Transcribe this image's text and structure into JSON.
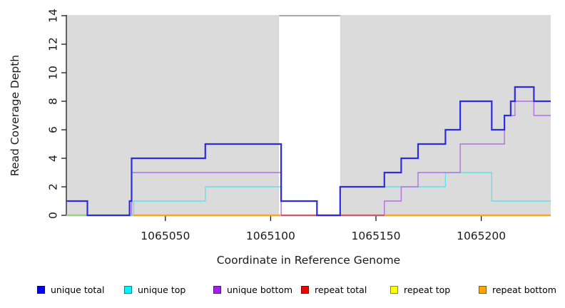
{
  "chart_data": {
    "type": "line",
    "subtype": "step-coverage-plot",
    "title": "",
    "xlabel": "Coordinate in Reference Genome",
    "ylabel": "Read Coverage Depth",
    "xlim": [
      1065003,
      1065233
    ],
    "ylim": [
      0,
      14
    ],
    "x_ticks": [
      1065050,
      1065100,
      1065150,
      1065200
    ],
    "y_ticks": [
      0,
      2,
      4,
      6,
      8,
      10,
      12,
      14
    ],
    "grid": false,
    "plot_background_color": "#DBDBDB",
    "axis_color": "#1A1A1A",
    "shaded_regions": [
      {
        "from": 1065003,
        "to": 1065104
      },
      {
        "from": 1065133,
        "to": 1065233
      }
    ],
    "gap_region": {
      "from": 1065104,
      "to": 1065133,
      "top_edge_color": "#A9A9A9"
    },
    "series": [
      {
        "name": "unique total",
        "color": "#2C2CE0",
        "steps": [
          [
            1065003,
            1
          ],
          [
            1065013,
            0
          ],
          [
            1065033,
            1
          ],
          [
            1065034,
            4
          ],
          [
            1065069,
            5
          ],
          [
            1065105,
            1
          ],
          [
            1065122,
            0
          ],
          [
            1065133,
            2
          ],
          [
            1065154,
            3
          ],
          [
            1065162,
            4
          ],
          [
            1065170,
            5
          ],
          [
            1065183,
            6
          ],
          [
            1065190,
            8
          ],
          [
            1065205,
            6
          ],
          [
            1065211,
            7
          ],
          [
            1065214,
            8
          ],
          [
            1065216,
            9
          ],
          [
            1065225,
            8
          ]
        ],
        "end": 1065233
      },
      {
        "name": "unique top",
        "color": "#5FE2E9",
        "steps": [
          [
            1065003,
            0
          ],
          [
            1065035,
            1
          ],
          [
            1065069,
            2
          ],
          [
            1065105,
            1
          ],
          [
            1065122,
            0
          ],
          [
            1065133,
            2
          ],
          [
            1065183,
            3
          ],
          [
            1065205,
            1
          ]
        ],
        "end": 1065233
      },
      {
        "name": "unique bottom",
        "color": "#B170E3",
        "steps": [
          [
            1065003,
            0
          ],
          [
            1065034,
            3
          ],
          [
            1065105,
            0
          ],
          [
            1065154,
            1
          ],
          [
            1065162,
            2
          ],
          [
            1065170,
            3
          ],
          [
            1065190,
            5
          ],
          [
            1065211,
            7
          ],
          [
            1065216,
            8
          ],
          [
            1065225,
            7
          ]
        ],
        "end": 1065233
      },
      {
        "name": "repeat total",
        "color": "#E00000",
        "steps": [
          [
            1065003,
            0
          ]
        ],
        "end": 1065233
      },
      {
        "name": "repeat top",
        "color": "#FFFF00",
        "steps": [
          [
            1065003,
            0
          ]
        ],
        "end": 1065233
      },
      {
        "name": "repeat bottom",
        "color": "#FFA41C",
        "steps": [
          [
            1065003,
            0
          ]
        ],
        "end": 1065233
      }
    ],
    "baseline_visible_segments": [
      {
        "from": 1065003,
        "to": 1065035,
        "color": "#8CD98C"
      },
      {
        "from": 1065035,
        "to": 1065105,
        "color": "#FFA41C"
      },
      {
        "from": 1065105,
        "to": 1065154,
        "color": "#C65B7C"
      },
      {
        "from": 1065154,
        "to": 1065233,
        "color": "#FFA41C"
      }
    ],
    "legend": [
      {
        "label": "unique total",
        "color": "#0000F5"
      },
      {
        "label": "unique top",
        "color": "#00F5FF"
      },
      {
        "label": "unique bottom",
        "color": "#A020F0"
      },
      {
        "label": "repeat total",
        "color": "#F50000"
      },
      {
        "label": "repeat top",
        "color": "#FFFF00"
      },
      {
        "label": "repeat bottom",
        "color": "#FFA500"
      }
    ]
  }
}
